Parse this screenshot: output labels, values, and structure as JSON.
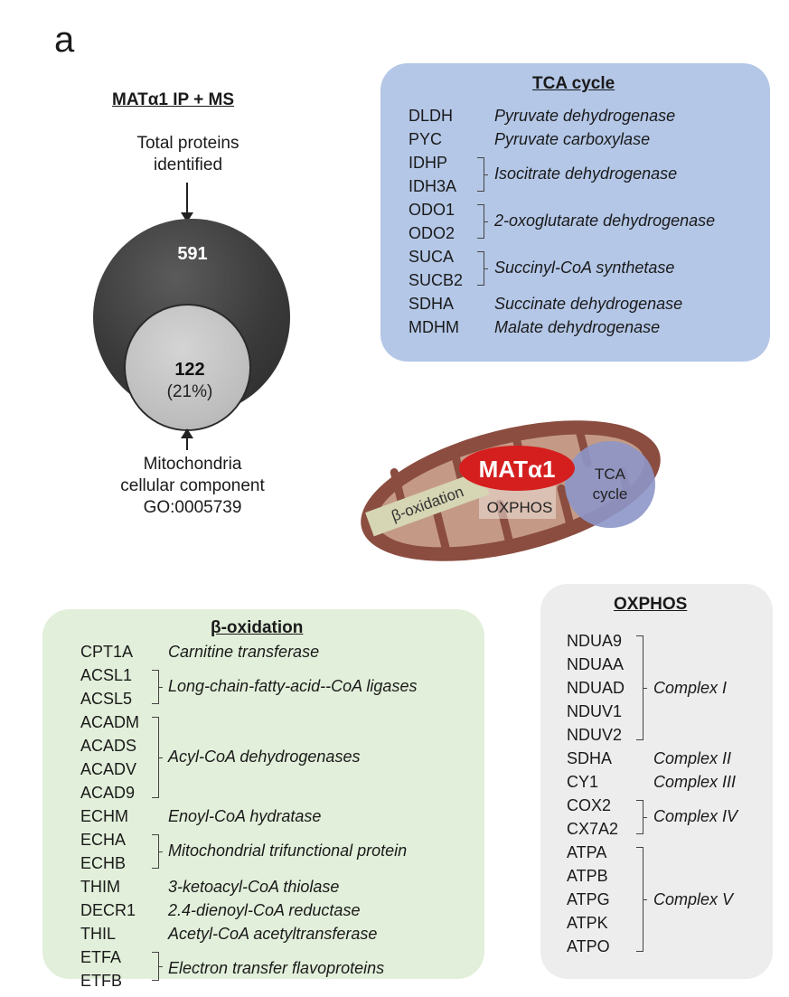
{
  "panel_label": "a",
  "ipms": {
    "title": "MATα1 IP + MS",
    "total_label": "Total proteins\nidentified",
    "total_count": "591",
    "mito_count": "122",
    "mito_percent": "(21%)",
    "mito_label": "Mitochondria\ncellular component\nGO:0005739"
  },
  "mito_diagram": {
    "protein": "MATα1",
    "oxphos": "OXPHOS",
    "tca": "TCA\ncycle",
    "tca_line1": "TCA",
    "tca_line2": "cycle",
    "beta": "β-oxidation",
    "colors": {
      "membrane": "#8b4d40",
      "matrix": "#c49a86",
      "mat": "#d51f1f",
      "tca": "#8d96c8",
      "beta": "#d6d5b4"
    }
  },
  "tca_box": {
    "title": "TCA cycle",
    "color": "#b4c7e7",
    "genes": [
      "DLDH",
      "PYC",
      "IDHP",
      "IDH3A",
      "ODO1",
      "ODO2",
      "SUCA",
      "SUCB2",
      "SDHA",
      "MDHM"
    ],
    "functions": [
      "Pyruvate dehydrogenase",
      "Pyruvate carboxylase",
      "Isocitrate dehydrogenase",
      "2-oxoglutarate dehydrogenase",
      "Succinyl-CoA synthetase",
      "Succinate dehydrogenase",
      "Malate dehydrogenase"
    ]
  },
  "beta_box": {
    "title": "β-oxidation",
    "color": "#e2efda",
    "genes": [
      "CPT1A",
      "ACSL1",
      "ACSL5",
      "ACADM",
      "ACADS",
      "ACADV",
      "ACAD9",
      "ECHM",
      "ECHA",
      "ECHB",
      "THIM",
      "DECR1",
      "THIL",
      "ETFA",
      "ETFB"
    ],
    "functions": [
      "Carnitine transferase",
      "Long-chain-fatty-acid--CoA ligases",
      "Acyl-CoA dehydrogenases",
      "Enoyl-CoA hydratase",
      "Mitochondrial trifunctional protein",
      "3-ketoacyl-CoA thiolase",
      "2.4-dienoyl-CoA reductase",
      "Acetyl-CoA acetyltransferase",
      "Electron transfer flavoproteins"
    ]
  },
  "oxphos_box": {
    "title": "OXPHOS",
    "color": "#ededed",
    "genes": [
      "NDUA9",
      "NDUAA",
      "NDUAD",
      "NDUV1",
      "NDUV2",
      "SDHA",
      "CY1",
      "COX2",
      "CX7A2",
      "ATPA",
      "ATPB",
      "ATPG",
      "ATPK",
      "ATPO"
    ],
    "functions": [
      "Complex I",
      "Complex II",
      "Complex III",
      "Complex IV",
      "Complex V"
    ]
  }
}
